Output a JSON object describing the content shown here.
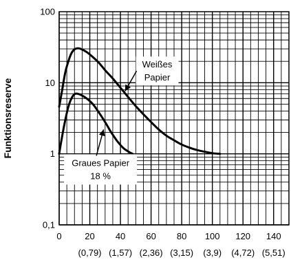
{
  "chart_data": {
    "type": "line",
    "title": "",
    "xlabel": "",
    "ylabel": "Funktionsreserve",
    "y_scale": "log",
    "xlim": [
      0,
      150
    ],
    "ylim": [
      0.1,
      100
    ],
    "grid": true,
    "x_ticks": [
      0,
      20,
      40,
      60,
      80,
      100,
      120,
      140
    ],
    "x_tick_labels": [
      "0",
      "20",
      "40",
      "60",
      "80",
      "100",
      "120",
      "140"
    ],
    "x_secondary_labels": [
      "(0,79)",
      "(1,57)",
      "(2,36)",
      "(3,15)",
      "(3,9)",
      "(4,72)",
      "(5,51)"
    ],
    "y_ticks": [
      0.1,
      1,
      10,
      100
    ],
    "y_tick_labels": [
      "0,1",
      "1",
      "10",
      "100"
    ],
    "series": [
      {
        "name": "Weißes Papier",
        "points": [
          [
            0,
            4.6
          ],
          [
            2,
            8
          ],
          [
            4,
            14
          ],
          [
            6,
            20
          ],
          [
            8,
            26
          ],
          [
            10,
            29.5
          ],
          [
            12,
            30.5
          ],
          [
            14,
            30
          ],
          [
            18,
            27
          ],
          [
            22,
            23
          ],
          [
            26,
            19
          ],
          [
            30,
            15
          ],
          [
            35,
            11.5
          ],
          [
            40,
            8.5
          ],
          [
            45,
            6.3
          ],
          [
            50,
            4.7
          ],
          [
            55,
            3.6
          ],
          [
            60,
            2.8
          ],
          [
            65,
            2.2
          ],
          [
            70,
            1.8
          ],
          [
            75,
            1.55
          ],
          [
            80,
            1.35
          ],
          [
            85,
            1.22
          ],
          [
            90,
            1.13
          ],
          [
            95,
            1.07
          ],
          [
            100,
            1.02
          ],
          [
            105,
            1.0
          ]
        ]
      },
      {
        "name": "Graues Papier 18 %",
        "points": [
          [
            0,
            1.0
          ],
          [
            2,
            1.8
          ],
          [
            4,
            3.0
          ],
          [
            6,
            4.6
          ],
          [
            8,
            6.0
          ],
          [
            10,
            6.9
          ],
          [
            12,
            7.0
          ],
          [
            15,
            6.6
          ],
          [
            18,
            6.0
          ],
          [
            22,
            5.0
          ],
          [
            26,
            3.8
          ],
          [
            30,
            2.8
          ],
          [
            34,
            2.0
          ],
          [
            38,
            1.5
          ],
          [
            42,
            1.2
          ],
          [
            46,
            1.05
          ],
          [
            48,
            1.0
          ]
        ]
      }
    ],
    "annotations": [
      {
        "lines": [
          "Weißes",
          "Papier"
        ],
        "series": "Weißes Papier"
      },
      {
        "lines": [
          "Graues Papier",
          "18 %"
        ],
        "series": "Graues Papier 18 %"
      }
    ]
  }
}
